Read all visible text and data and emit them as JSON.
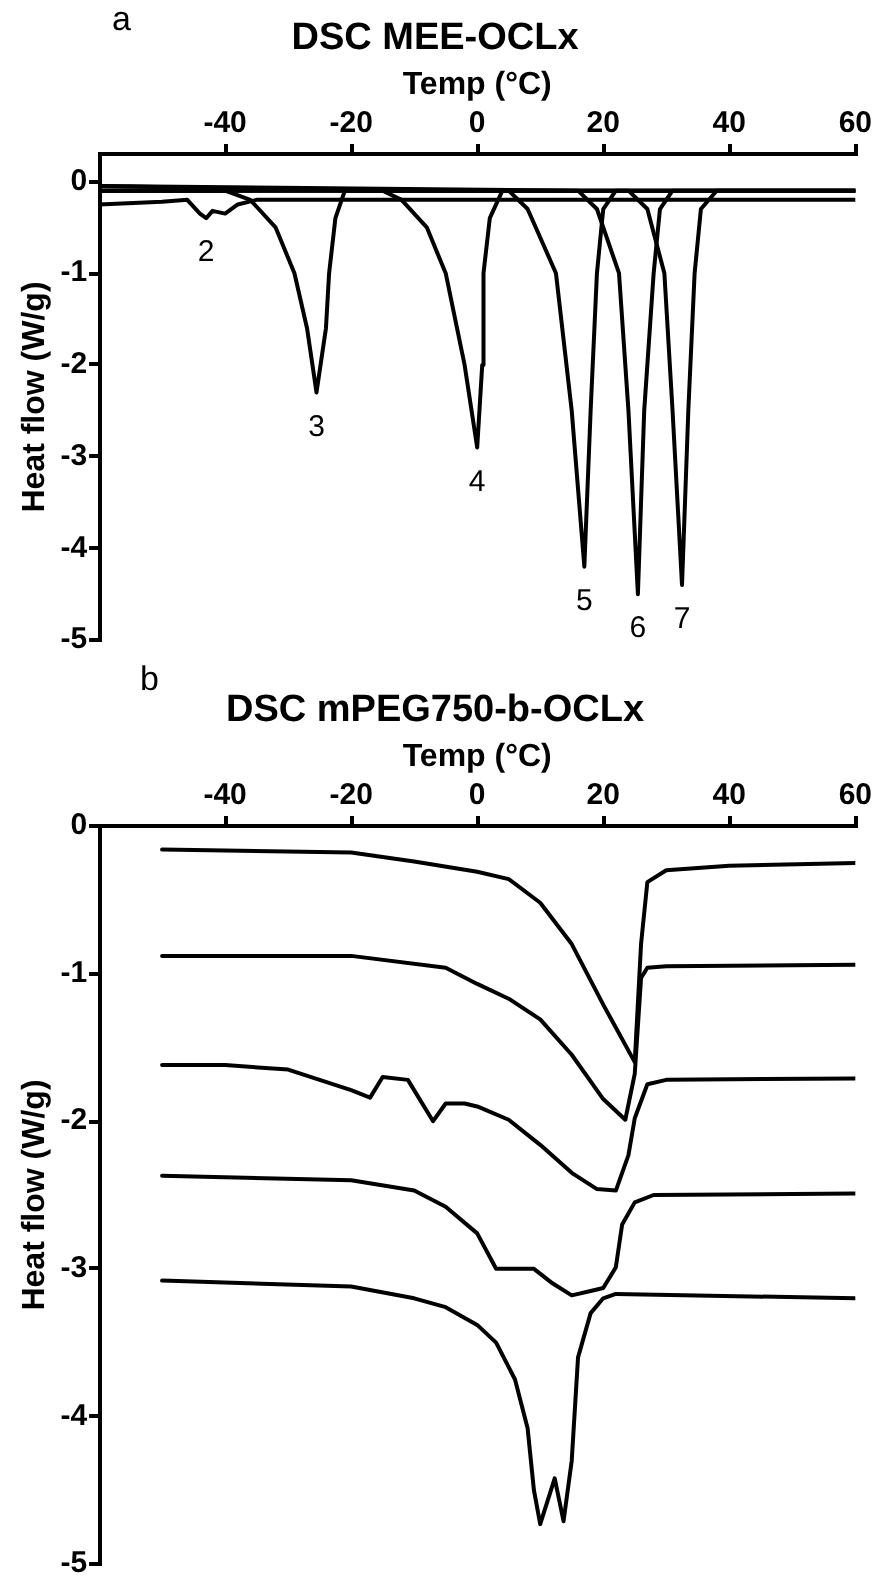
{
  "chart_data": [
    {
      "type": "line",
      "title": "DSC MEE-OCLx",
      "xlabel": "Temp (°C)",
      "ylabel": "Heat flow (W/g)",
      "xlim": [
        -60,
        60
      ],
      "xticks": [
        -40,
        -20,
        0,
        20,
        40,
        60
      ],
      "ylim": [
        -5,
        0.3
      ],
      "yticks": [
        -5,
        -4,
        -3,
        -2,
        -1,
        0
      ],
      "grid": false,
      "legend": false,
      "marker": "none",
      "line_style": "solid",
      "annotations": [
        "a",
        {
          "text": "2",
          "x": -43,
          "y": -0.4
        },
        {
          "text": "3",
          "x": -25.5,
          "y": -2.3
        },
        {
          "text": "4",
          "x": 0,
          "y": -2.9
        },
        {
          "text": "5",
          "x": 17,
          "y": -4.2
        },
        {
          "text": "6",
          "x": 25.5,
          "y": -4.5
        },
        {
          "text": "7",
          "x": 32.5,
          "y": -4.4
        }
      ],
      "series": [
        {
          "color": "#000000",
          "x": [
            -60,
            -50,
            -46,
            -44,
            -43,
            -42,
            -40,
            -38,
            -35,
            -20,
            60
          ],
          "values": [
            -0.25,
            -0.22,
            -0.2,
            -0.35,
            -0.4,
            -0.32,
            -0.35,
            -0.25,
            -0.2,
            -0.2,
            -0.2
          ]
        },
        {
          "color": "#000000",
          "x": [
            -60,
            -40,
            -36,
            -32,
            -29,
            -27,
            -25.5,
            -24,
            -23.5,
            -22.5,
            -21,
            60
          ],
          "values": [
            -0.1,
            -0.1,
            -0.2,
            -0.5,
            -1,
            -1.6,
            -2.3,
            -1.6,
            -1,
            -0.4,
            -0.1,
            -0.1
          ]
        },
        {
          "color": "#000000",
          "x": [
            -60,
            -15,
            -12,
            -8,
            -5,
            -2,
            0,
            0.8,
            1,
            2,
            4,
            60
          ],
          "values": [
            -0.05,
            -0.1,
            -0.2,
            -0.5,
            -1,
            -2,
            -2.9,
            -2,
            -1,
            -0.4,
            -0.1,
            -0.1
          ]
        },
        {
          "color": "#000000",
          "x": [
            -60,
            5,
            8,
            12.5,
            15,
            17,
            18,
            19,
            20,
            22,
            60
          ],
          "values": [
            -0.1,
            -0.1,
            -0.3,
            -1,
            -2.5,
            -4.2,
            -2.5,
            -1,
            -0.3,
            -0.1,
            -0.1
          ]
        },
        {
          "color": "#000000",
          "x": [
            -60,
            16,
            19,
            22.5,
            24,
            25.5,
            26.5,
            28,
            29,
            31,
            60
          ],
          "values": [
            -0.05,
            -0.1,
            -0.3,
            -1,
            -2.5,
            -4.5,
            -2.5,
            -1,
            -0.3,
            -0.1,
            -0.1
          ]
        },
        {
          "color": "#000000",
          "x": [
            -60,
            24,
            27,
            29.7,
            31,
            32.5,
            33.5,
            34.5,
            35.5,
            38,
            60
          ],
          "values": [
            -0.1,
            -0.1,
            -0.3,
            -1,
            -2.5,
            -4.4,
            -2.5,
            -1,
            -0.3,
            -0.1,
            -0.1
          ]
        }
      ]
    },
    {
      "type": "line",
      "title": "DSC mPEG750-b-OCLx",
      "xlabel": "Temp (°C)",
      "ylabel": "Heat flow (W/g)",
      "xlim": [
        -60,
        60
      ],
      "xticks": [
        -40,
        -20,
        0,
        20,
        40,
        60
      ],
      "ylim": [
        -5,
        0
      ],
      "yticks": [
        -5,
        -4,
        -3,
        -2,
        -1,
        0
      ],
      "grid": false,
      "legend": false,
      "marker": "none",
      "line_style": "solid",
      "annotations": [
        "b"
      ],
      "series": [
        {
          "color": "#000000",
          "x": [
            -50,
            -20,
            -10,
            0,
            5,
            10,
            15,
            20,
            25,
            26,
            27,
            30,
            40,
            60
          ],
          "values": [
            -0.16,
            -0.18,
            -0.24,
            -0.31,
            -0.36,
            -0.52,
            -0.8,
            -1.21,
            -1.6,
            -0.8,
            -0.38,
            -0.3,
            -0.27,
            -0.25
          ]
        },
        {
          "color": "#000000",
          "x": [
            -50,
            -20,
            -5,
            0,
            5,
            10,
            15,
            20,
            23.5,
            25,
            26,
            27,
            30,
            60
          ],
          "values": [
            -0.88,
            -0.88,
            -0.96,
            -1.07,
            -1.17,
            -1.31,
            -1.55,
            -1.85,
            -1.99,
            -1.68,
            -1.03,
            -0.96,
            -0.95,
            -0.94
          ]
        },
        {
          "color": "#000000",
          "x": [
            -50,
            -40,
            -30,
            -20,
            -17,
            -15,
            -11,
            -7,
            -5,
            -2,
            0,
            5,
            10,
            15,
            19,
            22,
            24,
            25,
            27,
            30,
            60
          ],
          "values": [
            -1.62,
            -1.62,
            -1.65,
            -1.79,
            -1.84,
            -1.7,
            -1.72,
            -2.0,
            -1.88,
            -1.88,
            -1.9,
            -1.99,
            -2.16,
            -2.35,
            -2.46,
            -2.47,
            -2.23,
            -1.98,
            -1.75,
            -1.72,
            -1.71
          ]
        },
        {
          "color": "#000000",
          "x": [
            -50,
            -20,
            -10,
            -5,
            0,
            3,
            5,
            9,
            12,
            15,
            18,
            20,
            22,
            23,
            25,
            28,
            60
          ],
          "values": [
            -2.37,
            -2.4,
            -2.47,
            -2.58,
            -2.76,
            -3.0,
            -3.0,
            -3.0,
            -3.1,
            -3.18,
            -3.15,
            -3.13,
            -2.99,
            -2.7,
            -2.55,
            -2.5,
            -2.49
          ]
        },
        {
          "color": "#000000",
          "x": [
            -50,
            -20,
            -10,
            -5,
            0,
            3,
            6,
            8,
            9,
            10,
            12.3,
            13.7,
            15,
            16,
            18,
            20,
            22,
            60
          ],
          "values": [
            -3.08,
            -3.12,
            -3.2,
            -3.26,
            -3.38,
            -3.5,
            -3.75,
            -4.08,
            -4.5,
            -4.73,
            -4.42,
            -4.71,
            -4.3,
            -3.6,
            -3.3,
            -3.2,
            -3.17,
            -3.2
          ]
        }
      ]
    }
  ]
}
